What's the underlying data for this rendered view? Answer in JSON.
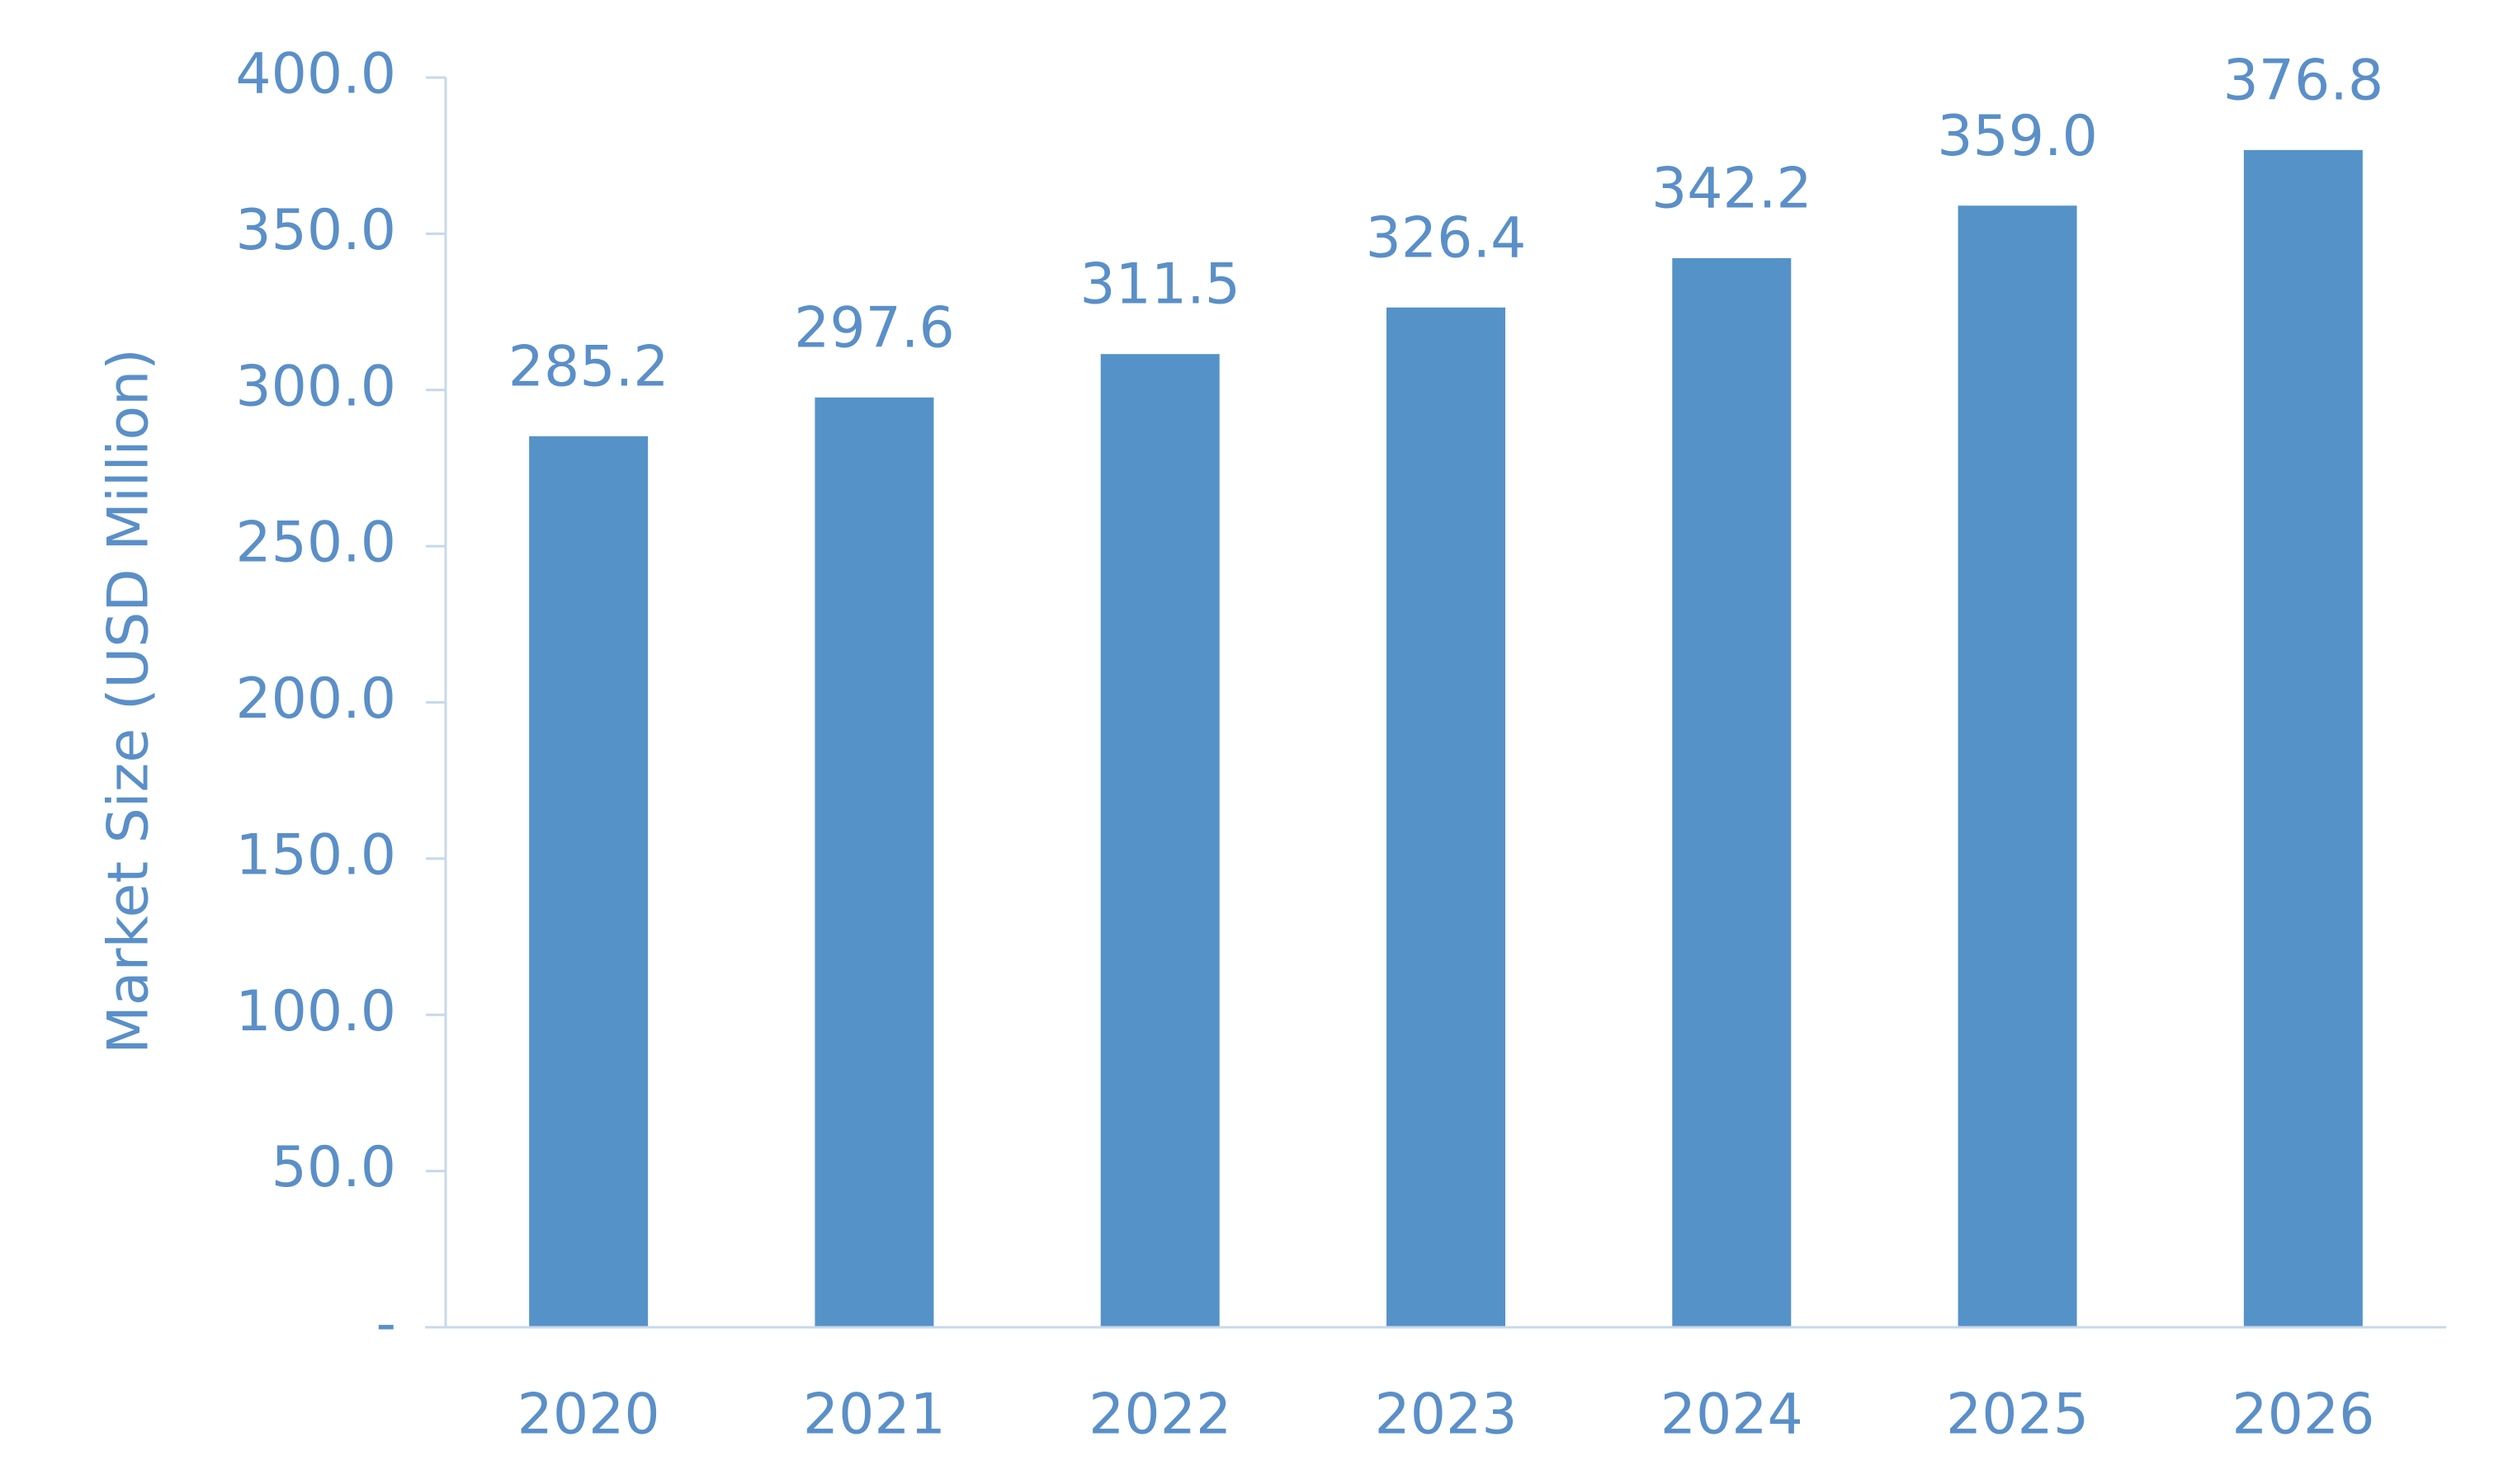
{
  "chart_data": {
    "type": "bar",
    "y_axis_label": "Market Size (USD Million)",
    "categories": [
      "2020",
      "2021",
      "2022",
      "2023",
      "2024",
      "2025",
      "2026"
    ],
    "values": [
      285.2,
      297.6,
      311.5,
      326.4,
      342.2,
      359.0,
      376.8
    ],
    "value_labels": [
      "285.2",
      "297.6",
      "311.5",
      "326.4",
      "342.2",
      "359.0",
      "376.8"
    ],
    "color": "#5592c8",
    "ylim": [
      0,
      400
    ],
    "yticks": [
      {
        "value": 0,
        "label": "-"
      },
      {
        "value": 50,
        "label": "50.0"
      },
      {
        "value": 100,
        "label": "100.0"
      },
      {
        "value": 150,
        "label": "150.0"
      },
      {
        "value": 200,
        "label": "200.0"
      },
      {
        "value": 250,
        "label": "250.0"
      },
      {
        "value": 300,
        "label": "300.0"
      },
      {
        "value": 350,
        "label": "350.0"
      },
      {
        "value": 400,
        "label": "400.0"
      }
    ],
    "grid": false
  }
}
